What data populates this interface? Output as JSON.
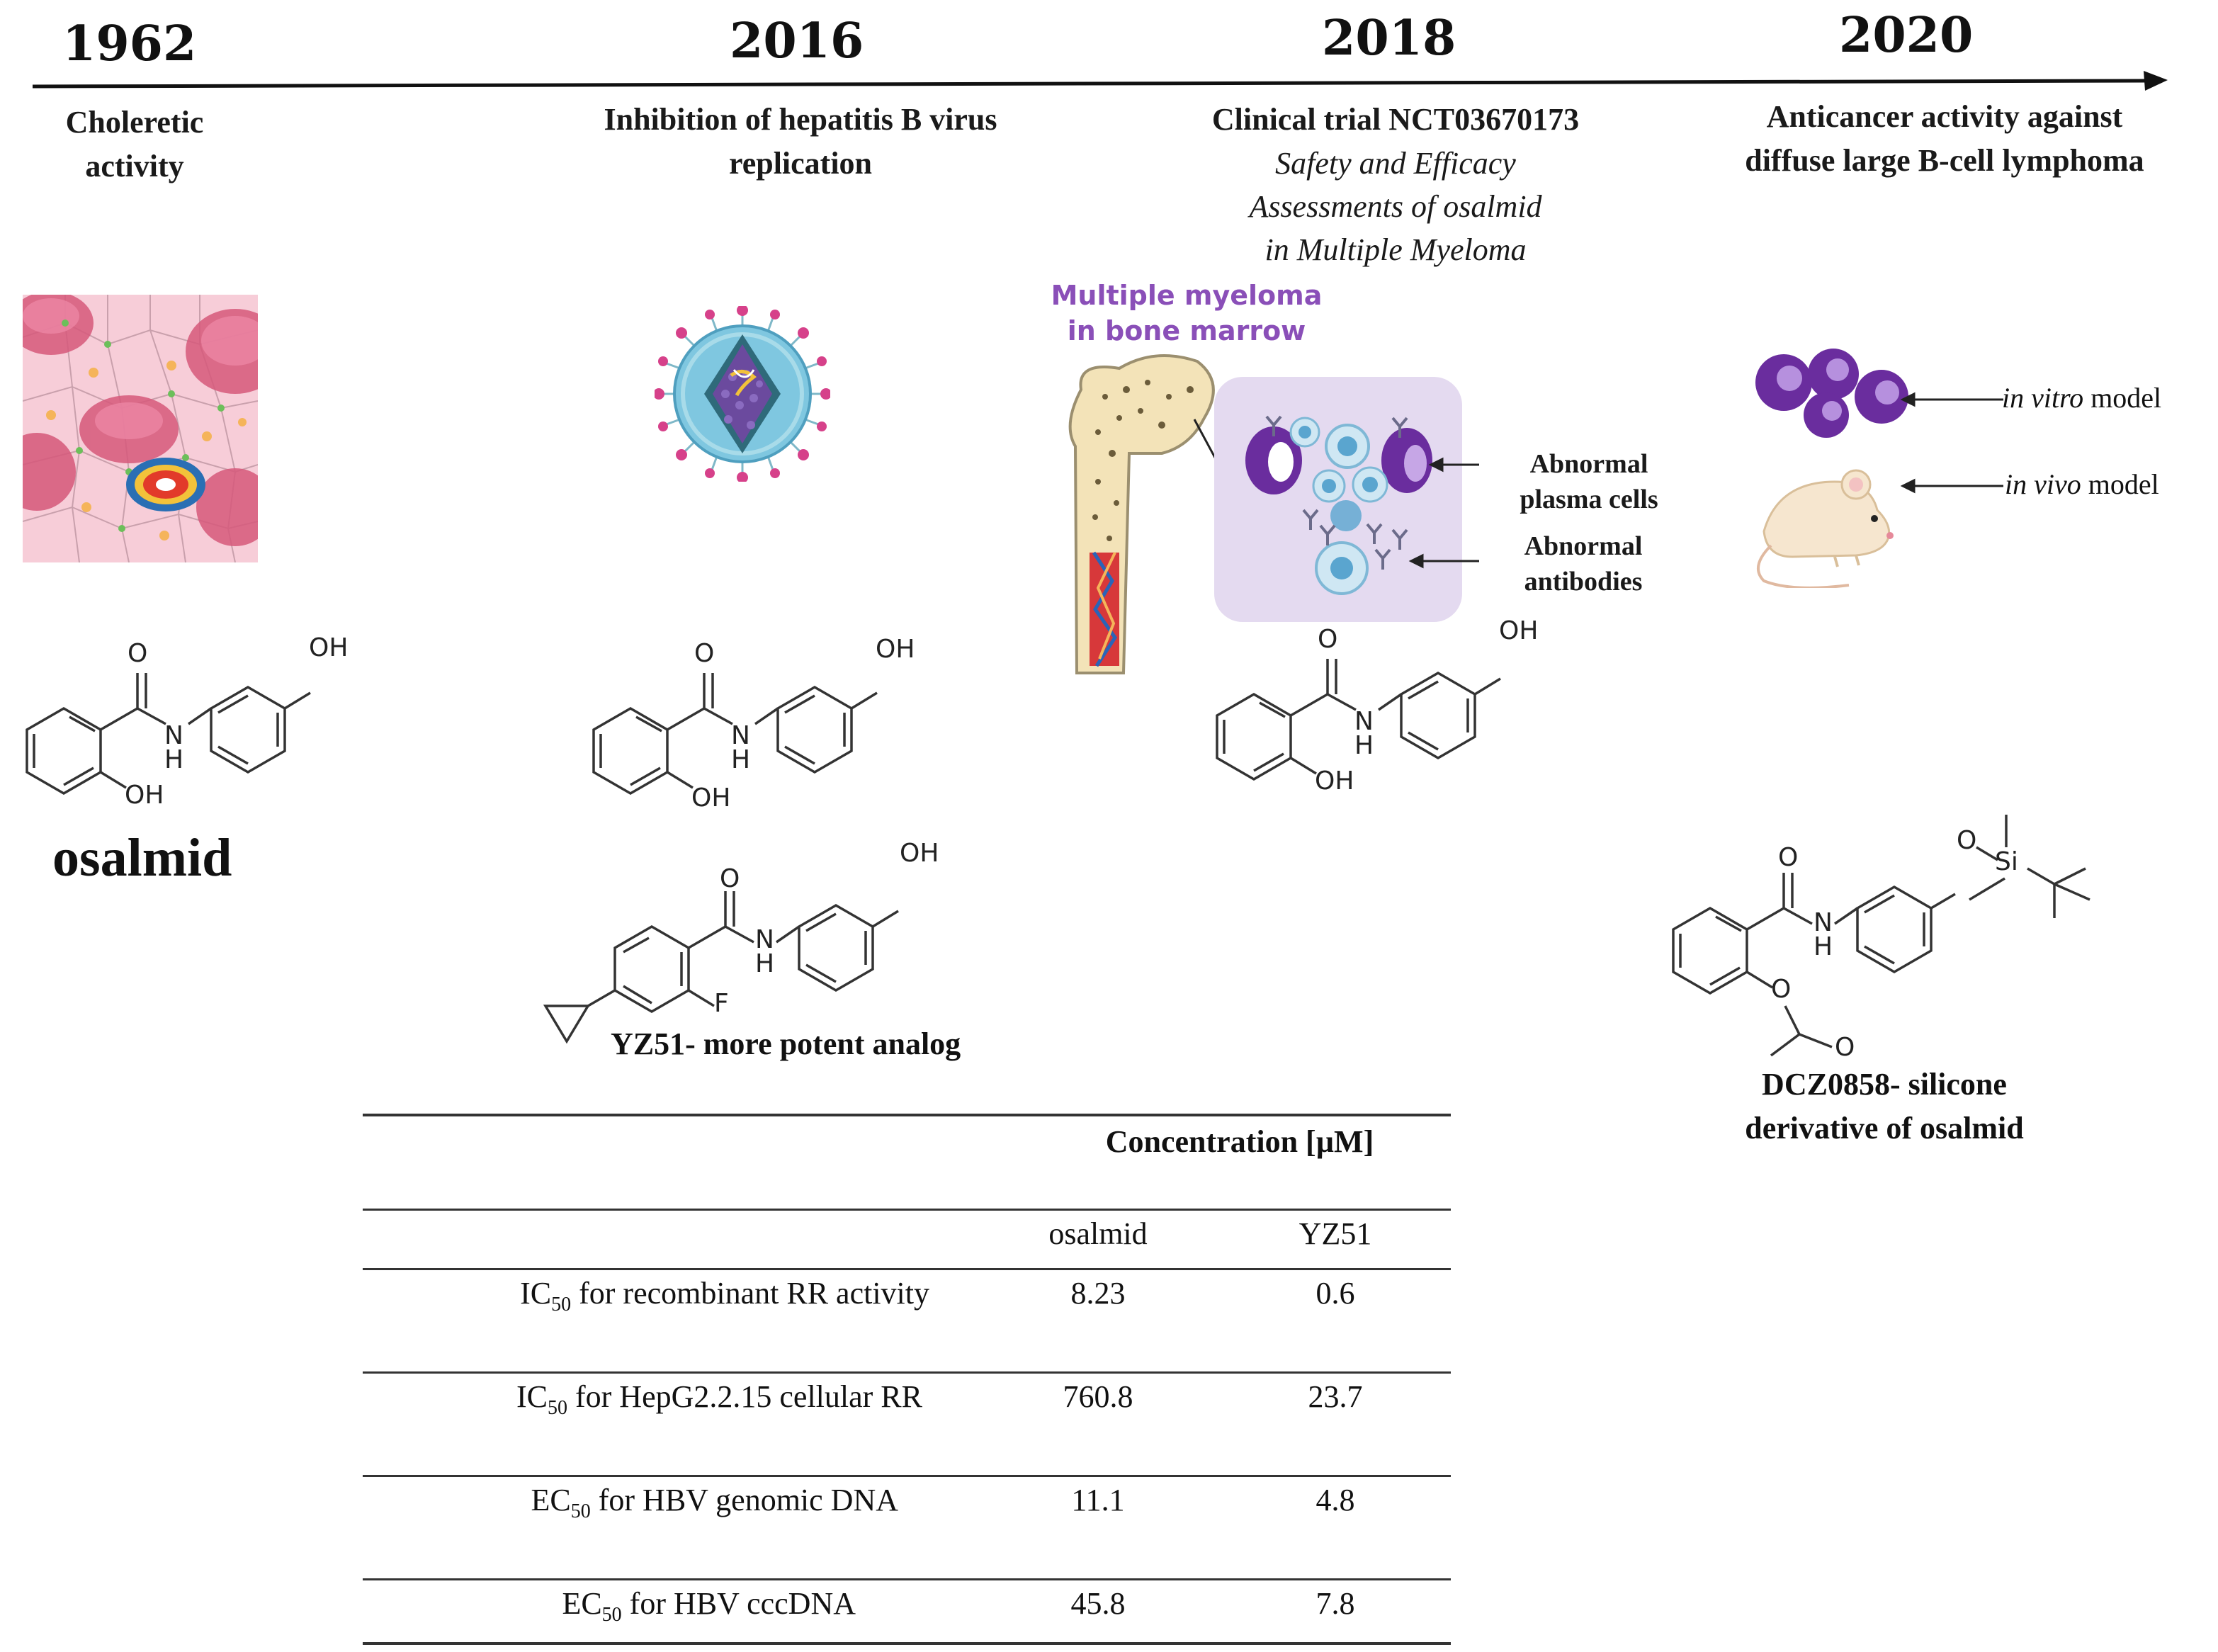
{
  "timeline": {
    "milestones": [
      {
        "year": "1962",
        "event_lines": [
          "Choleretic",
          "activity"
        ]
      },
      {
        "year": "2016",
        "event_lines": [
          "Inhibition  of hepatitis  B virus",
          "replication"
        ]
      },
      {
        "year": "2018",
        "event_lines": [
          "Clinical  trial NCT03670173"
        ],
        "event_italic_lines": [
          "Safety and Efficacy",
          "Assessments of osalmid",
          "in Multiple Myeloma"
        ]
      },
      {
        "year": "2020",
        "event_lines": [
          "Anticancer activity against",
          "diffuse large B-cell lymphoma"
        ]
      }
    ]
  },
  "myeloma": {
    "title_lines": [
      "Multiple myeloma",
      "in bone marrow"
    ],
    "callouts": [
      [
        "Abnormal",
        "plasma cells"
      ],
      [
        "Abnormal",
        "antibodies"
      ]
    ]
  },
  "models": [
    {
      "italic": "in vitro",
      "rest": " model"
    },
    {
      "italic": "in vivo",
      "rest": " model"
    }
  ],
  "molecules": {
    "osalmid_name": "osalmid",
    "yz51_caption": "YZ51- more potent analog",
    "dcz_caption_lines": [
      "DCZ0858- silicone",
      "derivative  of osalmid"
    ],
    "atom_labels": {
      "O": "O",
      "OH": "OH",
      "N": "N",
      "H": "H",
      "F": "F",
      "Si": "Si"
    }
  },
  "table": {
    "group_header": "Concentration [µM]",
    "columns": [
      "osalmid",
      "YZ51"
    ],
    "rows": [
      {
        "pre": "IC",
        "sub": "50",
        "post": " for recombinant RR activity",
        "values": [
          "8.23",
          "0.6"
        ]
      },
      {
        "pre": "IC",
        "sub": "50",
        "post": " for HepG2.2.15 cellular RR",
        "values": [
          "760.8",
          "23.7"
        ]
      },
      {
        "pre": "EC",
        "sub": "50",
        "post": " for HBV genomic DNA",
        "values": [
          "11.1",
          "4.8"
        ]
      },
      {
        "pre": "EC",
        "sub": "50",
        "post": " for HBV cccDNA",
        "values": [
          "45.8",
          "7.8"
        ]
      }
    ]
  },
  "colors": {
    "myeloma_title": "#8a4fb8",
    "cell_purple": "#6a2d9e",
    "panel_bg": "#e4daf0",
    "virus_body": "#7fc7e0",
    "liver_bg": "#f7cdd8"
  }
}
